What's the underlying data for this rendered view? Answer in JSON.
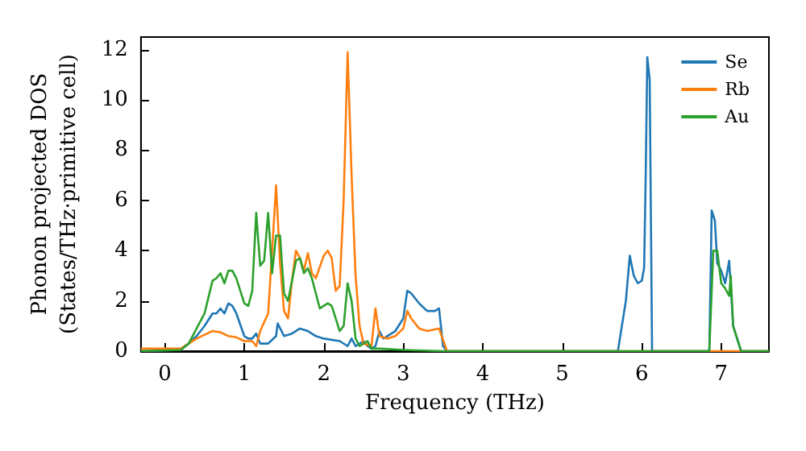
{
  "chart_data": {
    "type": "line",
    "xlabel": "Frequency (THz)",
    "ylabel": "Phonon projected DOS\n(States/THz·primitive cell)",
    "xlim": [
      -0.3,
      7.6
    ],
    "ylim": [
      0,
      12.5
    ],
    "xticks": [
      0,
      1,
      2,
      3,
      4,
      5,
      6,
      7
    ],
    "yticks": [
      0,
      2,
      4,
      6,
      8,
      10,
      12
    ],
    "grid": false,
    "legend": "top right",
    "marker": "none",
    "line_style": "solid",
    "series": [
      {
        "name": "Se",
        "color": "#1f77b4",
        "x": [
          -0.3,
          0.2,
          0.3,
          0.4,
          0.5,
          0.6,
          0.65,
          0.7,
          0.75,
          0.8,
          0.85,
          0.9,
          1.0,
          1.05,
          1.1,
          1.15,
          1.2,
          1.3,
          1.4,
          1.42,
          1.5,
          1.6,
          1.7,
          1.8,
          1.9,
          2.0,
          2.2,
          2.3,
          2.35,
          2.4,
          2.5,
          2.55,
          2.6,
          2.65,
          2.7,
          2.75,
          2.9,
          3.0,
          3.05,
          3.1,
          3.2,
          3.3,
          3.4,
          3.45,
          3.5,
          3.55,
          5.7,
          5.8,
          5.85,
          5.9,
          5.95,
          6.0,
          6.03,
          6.05,
          6.07,
          6.1,
          6.13,
          6.85,
          6.88,
          6.92,
          6.95,
          7.0,
          7.05,
          7.1,
          7.15,
          7.25,
          7.6
        ],
        "values": [
          0,
          0.05,
          0.3,
          0.6,
          1.0,
          1.5,
          1.5,
          1.7,
          1.5,
          1.9,
          1.8,
          1.5,
          0.6,
          0.5,
          0.5,
          0.7,
          0.3,
          0.3,
          0.6,
          1.1,
          0.6,
          0.7,
          0.9,
          0.8,
          0.6,
          0.5,
          0.4,
          0.2,
          0.5,
          0.2,
          0.4,
          0.2,
          0.1,
          0.2,
          0.8,
          0.5,
          0.8,
          1.3,
          2.4,
          2.3,
          1.9,
          1.6,
          1.6,
          1.7,
          0.2,
          0,
          0,
          2.0,
          3.8,
          3.0,
          2.7,
          2.8,
          3.3,
          7,
          11.7,
          10.8,
          0,
          0,
          5.6,
          5.2,
          3.5,
          3.2,
          2.7,
          3.6,
          1.0,
          0,
          0
        ]
      },
      {
        "name": "Rb",
        "color": "#ff7f0e",
        "x": [
          -0.3,
          0,
          0.2,
          0.4,
          0.6,
          0.7,
          0.8,
          0.9,
          1.0,
          1.1,
          1.15,
          1.2,
          1.3,
          1.35,
          1.4,
          1.45,
          1.5,
          1.55,
          1.6,
          1.65,
          1.7,
          1.75,
          1.8,
          1.85,
          1.9,
          2.0,
          2.05,
          2.1,
          2.15,
          2.2,
          2.25,
          2.3,
          2.35,
          2.4,
          2.45,
          2.5,
          2.6,
          2.65,
          2.7,
          2.8,
          2.9,
          3.0,
          3.05,
          3.1,
          3.2,
          3.3,
          3.45,
          3.55,
          7.6
        ],
        "values": [
          0.1,
          0.1,
          0.1,
          0.5,
          0.8,
          0.75,
          0.6,
          0.55,
          0.4,
          0.4,
          0.2,
          0.8,
          1.5,
          4,
          6.6,
          3.5,
          1.6,
          1.3,
          2.8,
          4.0,
          3.7,
          3.2,
          3.9,
          3.1,
          2.9,
          3.8,
          4.0,
          3.7,
          2.4,
          2.6,
          6,
          11.9,
          7,
          3,
          1,
          0.3,
          0.2,
          1.7,
          0.6,
          0.5,
          0.6,
          0.9,
          1.6,
          1.3,
          0.9,
          0.8,
          0.9,
          0,
          0
        ]
      },
      {
        "name": "Au",
        "color": "#2ca02c",
        "x": [
          -0.3,
          0.2,
          0.3,
          0.4,
          0.5,
          0.6,
          0.65,
          0.7,
          0.75,
          0.8,
          0.85,
          0.9,
          1.0,
          1.05,
          1.1,
          1.15,
          1.2,
          1.25,
          1.3,
          1.35,
          1.4,
          1.45,
          1.5,
          1.55,
          1.6,
          1.65,
          1.7,
          1.75,
          1.8,
          1.85,
          1.9,
          1.95,
          2.05,
          2.1,
          2.15,
          2.2,
          2.25,
          2.3,
          2.35,
          2.4,
          2.45,
          2.5,
          2.55,
          2.6,
          2.7,
          3.0,
          3.5,
          6.85,
          6.9,
          6.95,
          7.0,
          7.05,
          7.1,
          7.12,
          7.15,
          7.25,
          7.6
        ],
        "values": [
          0,
          0.05,
          0.3,
          0.9,
          1.5,
          2.8,
          2.9,
          3.1,
          2.7,
          3.2,
          3.2,
          2.9,
          1.9,
          1.8,
          2.4,
          5.5,
          3.4,
          3.6,
          5.5,
          3.1,
          4.6,
          4.6,
          2.3,
          2,
          2.8,
          3.6,
          3.7,
          3.1,
          3.3,
          2.9,
          2.3,
          1.7,
          1.9,
          1.8,
          1.3,
          0.8,
          1.0,
          2.7,
          2.0,
          0.5,
          0.2,
          0.3,
          0.4,
          0.1,
          0.1,
          0.05,
          0,
          0,
          4.0,
          4.0,
          2.7,
          2.5,
          2.2,
          3.0,
          1.0,
          0,
          0
        ]
      }
    ]
  }
}
